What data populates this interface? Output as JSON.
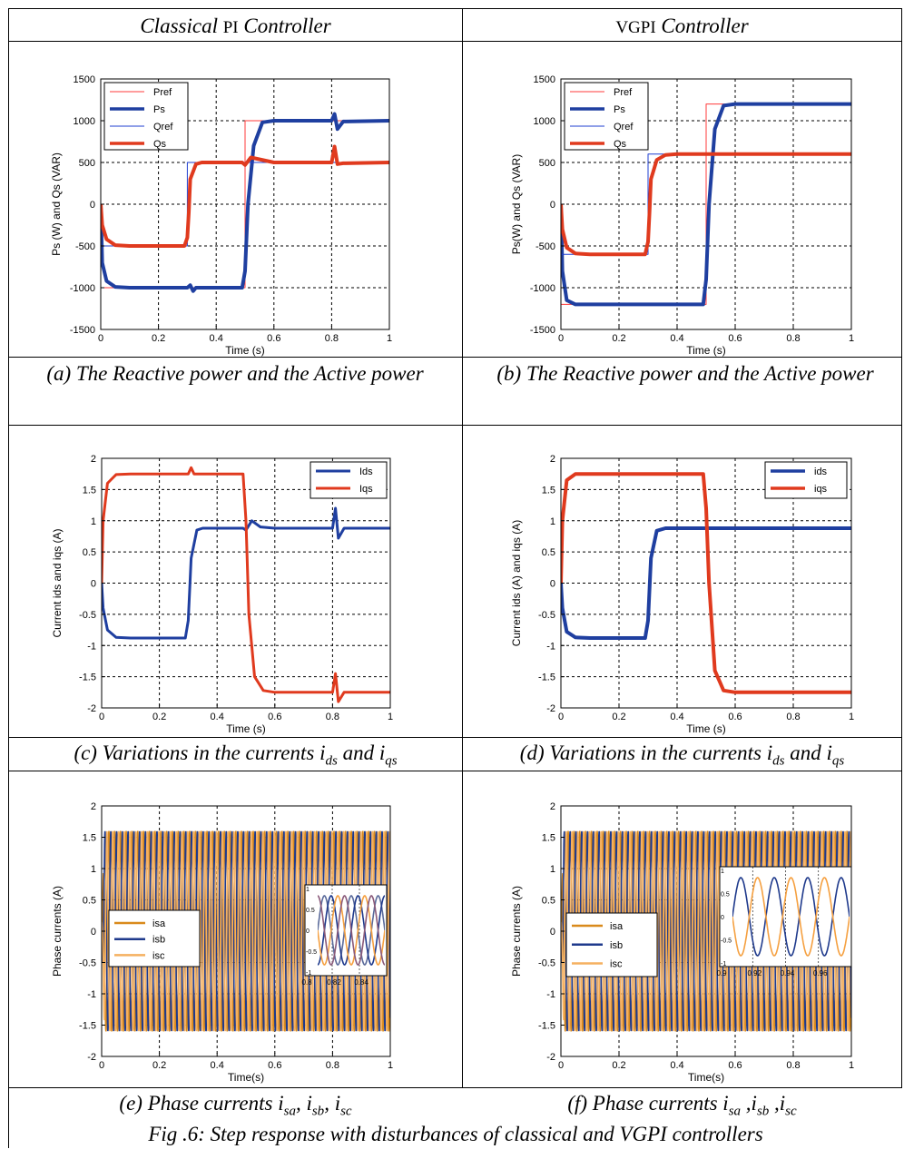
{
  "header": {
    "left": {
      "italic1": "Classical",
      "small": "PI",
      "italic2": "Controller"
    },
    "right": {
      "small": "VGPI",
      "italic2": "Controller"
    }
  },
  "captions": {
    "a": "(a)  The Reactive power and the Active power",
    "b": "(b)  The Reactive power and the Active power",
    "c": {
      "pre": "(c) Variations in the currents i",
      "s1": "ds",
      "mid": " and i",
      "s2": "qs"
    },
    "d": {
      "pre": "(d) Variations in the currents i",
      "s1": "ds",
      "mid": " and i",
      "s2": "qs"
    },
    "e": {
      "pre": "(e) Phase currents i",
      "s1": "sa",
      "m1": ", i",
      "s2": "sb",
      "m2": ", i",
      "s3": "sc"
    },
    "f": {
      "pre": "(f) Phase currents i",
      "s1": "sa",
      "m1": " ,i",
      "s2": "sb",
      "m2": " ,i",
      "s3": "sc"
    }
  },
  "figure_caption": "Fig .6: Step response with disturbances of classical  and VGPI  controllers",
  "chart_data": [
    {
      "id": "a",
      "type": "line",
      "xlabel": "Time (s)",
      "ylabel": "Ps (W) and Qs (VAR)",
      "xlim": [
        0,
        1
      ],
      "ylim": [
        -1500,
        1500
      ],
      "xticks": [
        "0",
        "0.2",
        "0.4",
        "0.6",
        "0.8",
        "1"
      ],
      "yticks": [
        "-1500",
        "-1000",
        "-500",
        "0",
        "500",
        "1000",
        "1500"
      ],
      "grid": true,
      "legend": "top-left",
      "series": [
        {
          "name": "Pref",
          "color": "#ff3b3b",
          "width": 1,
          "x": [
            0,
            0.5,
            0.5,
            1
          ],
          "y": [
            -1000,
            -1000,
            1000,
            1000
          ]
        },
        {
          "name": "Ps",
          "color": "#1f3fa0",
          "width": 4,
          "x": [
            0,
            0.005,
            0.02,
            0.05,
            0.1,
            0.3,
            0.31,
            0.32,
            0.33,
            0.49,
            0.5,
            0.51,
            0.53,
            0.56,
            0.6,
            0.8,
            0.81,
            0.82,
            0.84,
            1
          ],
          "y": [
            0,
            -700,
            -920,
            -990,
            -1000,
            -1000,
            -970,
            -1040,
            -1000,
            -1000,
            -800,
            0,
            700,
            980,
            1000,
            1000,
            1080,
            900,
            990,
            1000
          ]
        },
        {
          "name": "Qref",
          "color": "#1f3fd0",
          "width": 1,
          "x": [
            0,
            0.3,
            0.3,
            1
          ],
          "y": [
            -500,
            -500,
            500,
            500
          ]
        },
        {
          "name": "Qs",
          "color": "#e03a1e",
          "width": 4,
          "x": [
            0,
            0.005,
            0.02,
            0.05,
            0.1,
            0.29,
            0.3,
            0.305,
            0.31,
            0.33,
            0.35,
            0.49,
            0.5,
            0.52,
            0.6,
            0.8,
            0.81,
            0.82,
            0.84,
            1
          ],
          "y": [
            0,
            -250,
            -420,
            -490,
            -500,
            -500,
            -400,
            -100,
            300,
            480,
            500,
            500,
            470,
            560,
            500,
            500,
            690,
            480,
            490,
            500
          ]
        }
      ]
    },
    {
      "id": "b",
      "type": "line",
      "xlabel": "Time (s)",
      "ylabel": "Ps(W) and Qs (VAR)",
      "xlim": [
        0,
        1
      ],
      "ylim": [
        -1500,
        1500
      ],
      "xticks": [
        "0",
        "0.2",
        "0.4",
        "0.6",
        "0.8",
        "1"
      ],
      "yticks": [
        "-1500",
        "-1000",
        "-500",
        "0",
        "500",
        "1000",
        "1500"
      ],
      "grid": true,
      "legend": "top-left",
      "series": [
        {
          "name": "Pref",
          "color": "#ff3b3b",
          "width": 1,
          "x": [
            0,
            0.5,
            0.5,
            1
          ],
          "y": [
            -1200,
            -1200,
            1200,
            1200
          ]
        },
        {
          "name": "Ps",
          "color": "#1f3fa0",
          "width": 4,
          "x": [
            0,
            0.005,
            0.02,
            0.05,
            0.1,
            0.49,
            0.5,
            0.51,
            0.53,
            0.56,
            0.6,
            1
          ],
          "y": [
            0,
            -800,
            -1150,
            -1200,
            -1200,
            -1200,
            -900,
            0,
            900,
            1180,
            1200,
            1200
          ]
        },
        {
          "name": "Qref",
          "color": "#1f3fd0",
          "width": 1,
          "x": [
            0,
            0.3,
            0.3,
            1
          ],
          "y": [
            -600,
            -600,
            600,
            600
          ]
        },
        {
          "name": "Qs",
          "color": "#e03a1e",
          "width": 4,
          "x": [
            0,
            0.005,
            0.02,
            0.05,
            0.1,
            0.29,
            0.3,
            0.305,
            0.31,
            0.33,
            0.36,
            0.4,
            1
          ],
          "y": [
            0,
            -300,
            -520,
            -590,
            -600,
            -600,
            -450,
            -100,
            300,
            530,
            590,
            600,
            600
          ]
        }
      ]
    },
    {
      "id": "c",
      "type": "line",
      "xlabel": "Time (s)",
      "ylabel": "Current ids and iqs (A)",
      "xlim": [
        0,
        1
      ],
      "ylim": [
        -2,
        2
      ],
      "xticks": [
        "0",
        "0.2",
        "0.4",
        "0.6",
        "0.8",
        "1"
      ],
      "yticks": [
        "-2",
        "-1.5",
        "-1",
        "-0.5",
        "0",
        "0.5",
        "1",
        "1.5",
        "2"
      ],
      "grid": true,
      "legend": "top-right",
      "series": [
        {
          "name": "Ids",
          "color": "#1f3fa0",
          "width": 3,
          "x": [
            0,
            0.005,
            0.02,
            0.05,
            0.1,
            0.29,
            0.3,
            0.305,
            0.31,
            0.33,
            0.35,
            0.49,
            0.5,
            0.52,
            0.55,
            0.6,
            0.8,
            0.81,
            0.82,
            0.84,
            1
          ],
          "y": [
            0,
            -0.4,
            -0.75,
            -0.87,
            -0.88,
            -0.88,
            -0.6,
            -0.1,
            0.4,
            0.85,
            0.88,
            0.88,
            0.85,
            1.0,
            0.9,
            0.88,
            0.88,
            1.2,
            0.72,
            0.88,
            0.88
          ]
        },
        {
          "name": "Iqs",
          "color": "#e03a1e",
          "width": 3,
          "x": [
            0,
            0.005,
            0.02,
            0.05,
            0.1,
            0.3,
            0.31,
            0.32,
            0.34,
            0.49,
            0.5,
            0.51,
            0.53,
            0.56,
            0.6,
            0.8,
            0.81,
            0.82,
            0.84,
            1
          ],
          "y": [
            0,
            1.0,
            1.6,
            1.74,
            1.75,
            1.75,
            1.85,
            1.75,
            1.75,
            1.75,
            1.0,
            -0.5,
            -1.5,
            -1.72,
            -1.75,
            -1.75,
            -1.45,
            -1.9,
            -1.75,
            -1.75
          ]
        }
      ]
    },
    {
      "id": "d",
      "type": "line",
      "xlabel": "Time (s)",
      "ylabel": "Current  ids (A) and iqs (A)",
      "xlim": [
        0,
        1
      ],
      "ylim": [
        -2,
        2
      ],
      "xticks": [
        "0",
        "0.2",
        "0.4",
        "0.6",
        "0.8",
        "1"
      ],
      "yticks": [
        "-2",
        "-1.5",
        "-1",
        "-0.5",
        "0",
        "0.5",
        "1",
        "1.5",
        "2"
      ],
      "grid": true,
      "legend": "top-right",
      "series": [
        {
          "name": "ids",
          "color": "#1f3fa0",
          "width": 4,
          "x": [
            0,
            0.005,
            0.02,
            0.05,
            0.1,
            0.29,
            0.3,
            0.305,
            0.31,
            0.33,
            0.36,
            1
          ],
          "y": [
            0,
            -0.4,
            -0.78,
            -0.87,
            -0.88,
            -0.88,
            -0.6,
            -0.1,
            0.4,
            0.84,
            0.88,
            0.88
          ]
        },
        {
          "name": "iqs",
          "color": "#e03a1e",
          "width": 4,
          "x": [
            0,
            0.005,
            0.02,
            0.05,
            0.1,
            0.49,
            0.5,
            0.51,
            0.53,
            0.56,
            0.6,
            1
          ],
          "y": [
            0,
            1.0,
            1.65,
            1.75,
            1.75,
            1.75,
            1.2,
            0,
            -1.4,
            -1.72,
            -1.75,
            -1.75
          ]
        }
      ]
    },
    {
      "id": "e",
      "type": "line",
      "xlabel": "Time(s)",
      "ylabel": "Phase currents (A)",
      "xlim": [
        0,
        1
      ],
      "ylim": [
        -2,
        2
      ],
      "xticks": [
        "0",
        "0.2",
        "0.4",
        "0.6",
        "0.8",
        "1"
      ],
      "yticks": [
        "-2",
        "-1.5",
        "-1",
        "-0.5",
        "0",
        "0.5",
        "1",
        "1.5",
        "2"
      ],
      "grid": true,
      "legend": "middle-left",
      "amplitude": 1.6,
      "series": [
        {
          "name": "isa",
          "color": "#d98a1c"
        },
        {
          "name": "isb",
          "color": "#1f3a8c"
        },
        {
          "name": "isc",
          "color": "#f5b060"
        }
      ],
      "inset": {
        "xlim": [
          0.8,
          0.85
        ],
        "ylim": [
          -1,
          1
        ],
        "xticks": [
          "0.8",
          "0.82",
          "0.84"
        ],
        "yticks": [
          "-1",
          "-0.5",
          "0",
          "0.5",
          "1"
        ],
        "series_colors": [
          "#5a6a9a",
          "#1f3a8c",
          "#f5a040",
          "#8a5a7a"
        ]
      }
    },
    {
      "id": "f",
      "type": "line",
      "xlabel": "Time(s)",
      "ylabel": "Phase currents (A)",
      "xlim": [
        0,
        1
      ],
      "ylim": [
        -2,
        2
      ],
      "xticks": [
        "0",
        "0.2",
        "0.4",
        "0.6",
        "0.8",
        "1"
      ],
      "yticks": [
        "-2",
        "-1.5",
        "-1",
        "-0.5",
        "0",
        "0.5",
        "1",
        "1.5",
        "2"
      ],
      "grid": true,
      "legend": "middle-left",
      "amplitude": 1.6,
      "series": [
        {
          "name": "isa",
          "color": "#d98a1c"
        },
        {
          "name": "isb",
          "color": "#1f3a8c"
        },
        {
          "name": "isc",
          "color": "#f5b060"
        }
      ],
      "inset": {
        "xlim": [
          0.9,
          0.97
        ],
        "ylim": [
          -1,
          1
        ],
        "xticks": [
          "0.9",
          "0.92",
          "0.94",
          "0.96"
        ],
        "yticks": [
          "-1",
          "-0.5",
          "0",
          "0.5",
          "1"
        ],
        "series_colors": [
          "#1f3a8c",
          "#f5a040"
        ]
      }
    }
  ]
}
